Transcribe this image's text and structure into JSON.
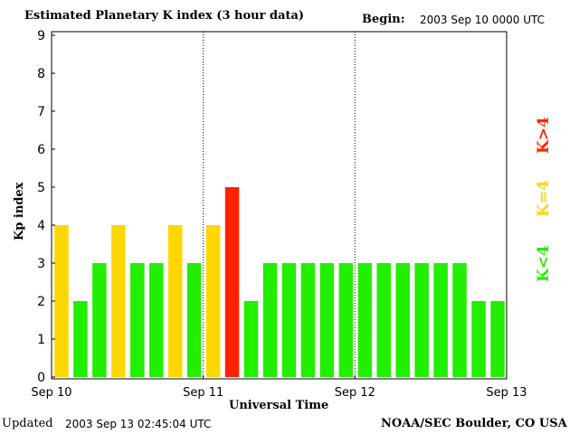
{
  "header": {
    "title": "Estimated Planetary K index (3 hour data)",
    "begin_label": "Begin:",
    "begin_value": "2003 Sep 10 0000 UTC"
  },
  "footer": {
    "updated_label": "Updated",
    "updated_value": "2003 Sep 13 02:45:04 UTC",
    "source": "NOAA/SEC Boulder, CO USA"
  },
  "legend": [
    {
      "label": "K>4",
      "color": "#ff2200"
    },
    {
      "label": "K=4",
      "color": "#ffd700"
    },
    {
      "label": "K<4",
      "color": "#22ee00"
    }
  ],
  "chart_data": {
    "type": "bar",
    "title": "Estimated Planetary K index (3 hour data)",
    "xlabel": "Universal Time",
    "ylabel": "Kp index",
    "ylim": [
      0,
      9
    ],
    "yticks": [
      "0",
      "1",
      "2",
      "3",
      "4",
      "5",
      "6",
      "7",
      "8",
      "9"
    ],
    "xticks": [
      "Sep 10",
      "Sep 11",
      "Sep 12",
      "Sep 13"
    ],
    "days": 3,
    "intervals_per_day": 8,
    "values": [
      4,
      2,
      3,
      4,
      3,
      3,
      4,
      3,
      4,
      5,
      2,
      3,
      3,
      3,
      3,
      3,
      3,
      3,
      3,
      3,
      3,
      3,
      2,
      2
    ],
    "colors": {
      "low": "#22ee00",
      "equal": "#ffd700",
      "high": "#ff2200"
    },
    "grid": false
  }
}
